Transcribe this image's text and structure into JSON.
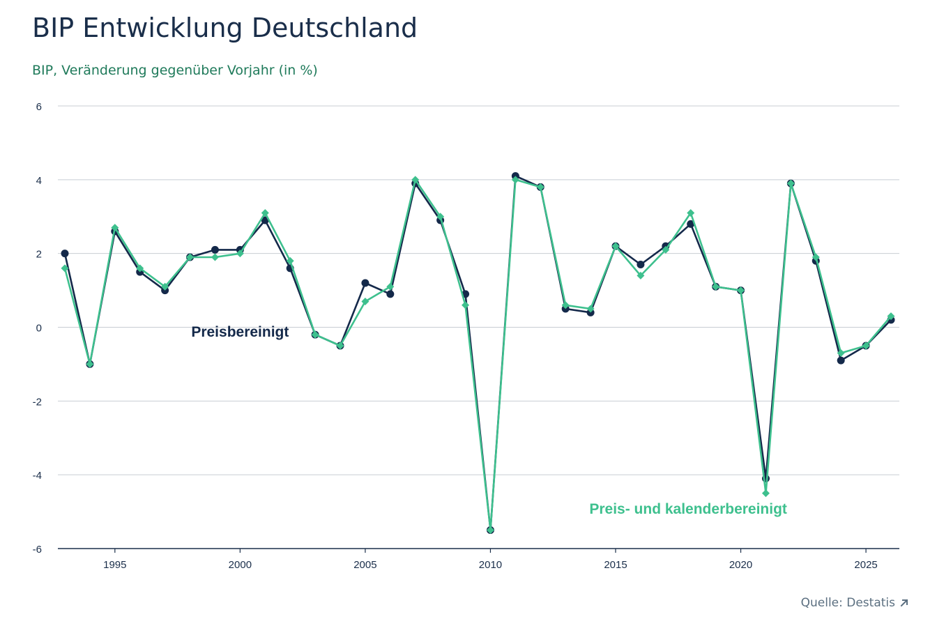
{
  "header": {
    "title": "BIP Entwicklung Deutschland",
    "subtitle": "BIP, Veränderung gegenüber Vorjahr (in %)"
  },
  "footer": {
    "source_label": "Quelle: Destatis",
    "source_icon": "arrow-up-right-icon"
  },
  "colors": {
    "series_dark": "#14294a",
    "series_green": "#3ec08e",
    "grid": "#c8cdd3",
    "axis": "#1a2e4a",
    "tick_text": "#1a2e4a"
  },
  "chart_data": {
    "type": "line",
    "title": "BIP Entwicklung Deutschland",
    "subtitle": "BIP, Veränderung gegenüber Vorjahr (in %)",
    "xlabel": "",
    "ylabel": "",
    "xlim": [
      1993,
      2026
    ],
    "ylim": [
      -6,
      6
    ],
    "x_ticks": [
      1995,
      2000,
      2005,
      2010,
      2015,
      2020,
      2025
    ],
    "x_tick_labels": [
      "1995",
      "2000",
      "2005",
      "2010",
      "2015",
      "2020",
      "2025"
    ],
    "y_ticks": [
      -6,
      -4,
      -2,
      0,
      2,
      4,
      6
    ],
    "y_tick_labels": [
      "-6",
      "-4",
      "-2",
      "0",
      "2",
      "4",
      "6"
    ],
    "grid": true,
    "x": [
      1993,
      1994,
      1995,
      1996,
      1997,
      1998,
      1999,
      2000,
      2001,
      2002,
      2003,
      2004,
      2005,
      2006,
      2007,
      2008,
      2009,
      2010,
      2011,
      2012,
      2013,
      2014,
      2015,
      2016,
      2017,
      2018,
      2019,
      2020,
      2021,
      2022,
      2023,
      2024,
      2025,
      2026
    ],
    "series": [
      {
        "name": "Preisbereinigt",
        "marker": "circle",
        "color": "#14294a",
        "values": [
          2.0,
          -1.0,
          2.6,
          1.5,
          1.0,
          1.9,
          2.1,
          2.1,
          2.9,
          1.6,
          -0.2,
          -0.5,
          1.2,
          0.9,
          3.9,
          2.9,
          0.9,
          -5.5,
          4.1,
          3.8,
          0.5,
          0.4,
          2.2,
          1.7,
          2.2,
          2.8,
          1.1,
          1.0,
          -4.1,
          3.9,
          1.8,
          -0.9,
          -0.5,
          0.2
        ]
      },
      {
        "name": "Preis- und kalenderbereinigt",
        "marker": "diamond",
        "color": "#3ec08e",
        "values": [
          1.6,
          -1.0,
          2.7,
          1.6,
          1.1,
          1.9,
          1.9,
          2.0,
          3.1,
          1.8,
          -0.2,
          -0.5,
          0.7,
          1.1,
          4.0,
          3.0,
          0.6,
          -5.5,
          4.0,
          3.8,
          0.6,
          0.5,
          2.2,
          1.4,
          2.1,
          3.1,
          1.1,
          1.0,
          -4.5,
          3.9,
          1.9,
          -0.7,
          -0.5,
          0.3
        ]
      }
    ],
    "annotations": [
      {
        "text": "Preisbereinigt",
        "series": 0,
        "x": 2000,
        "y": -0.1
      },
      {
        "text": "Preis- und kalenderbereinigt",
        "series": 1,
        "x": 2017.9,
        "y": -4.9
      }
    ]
  }
}
